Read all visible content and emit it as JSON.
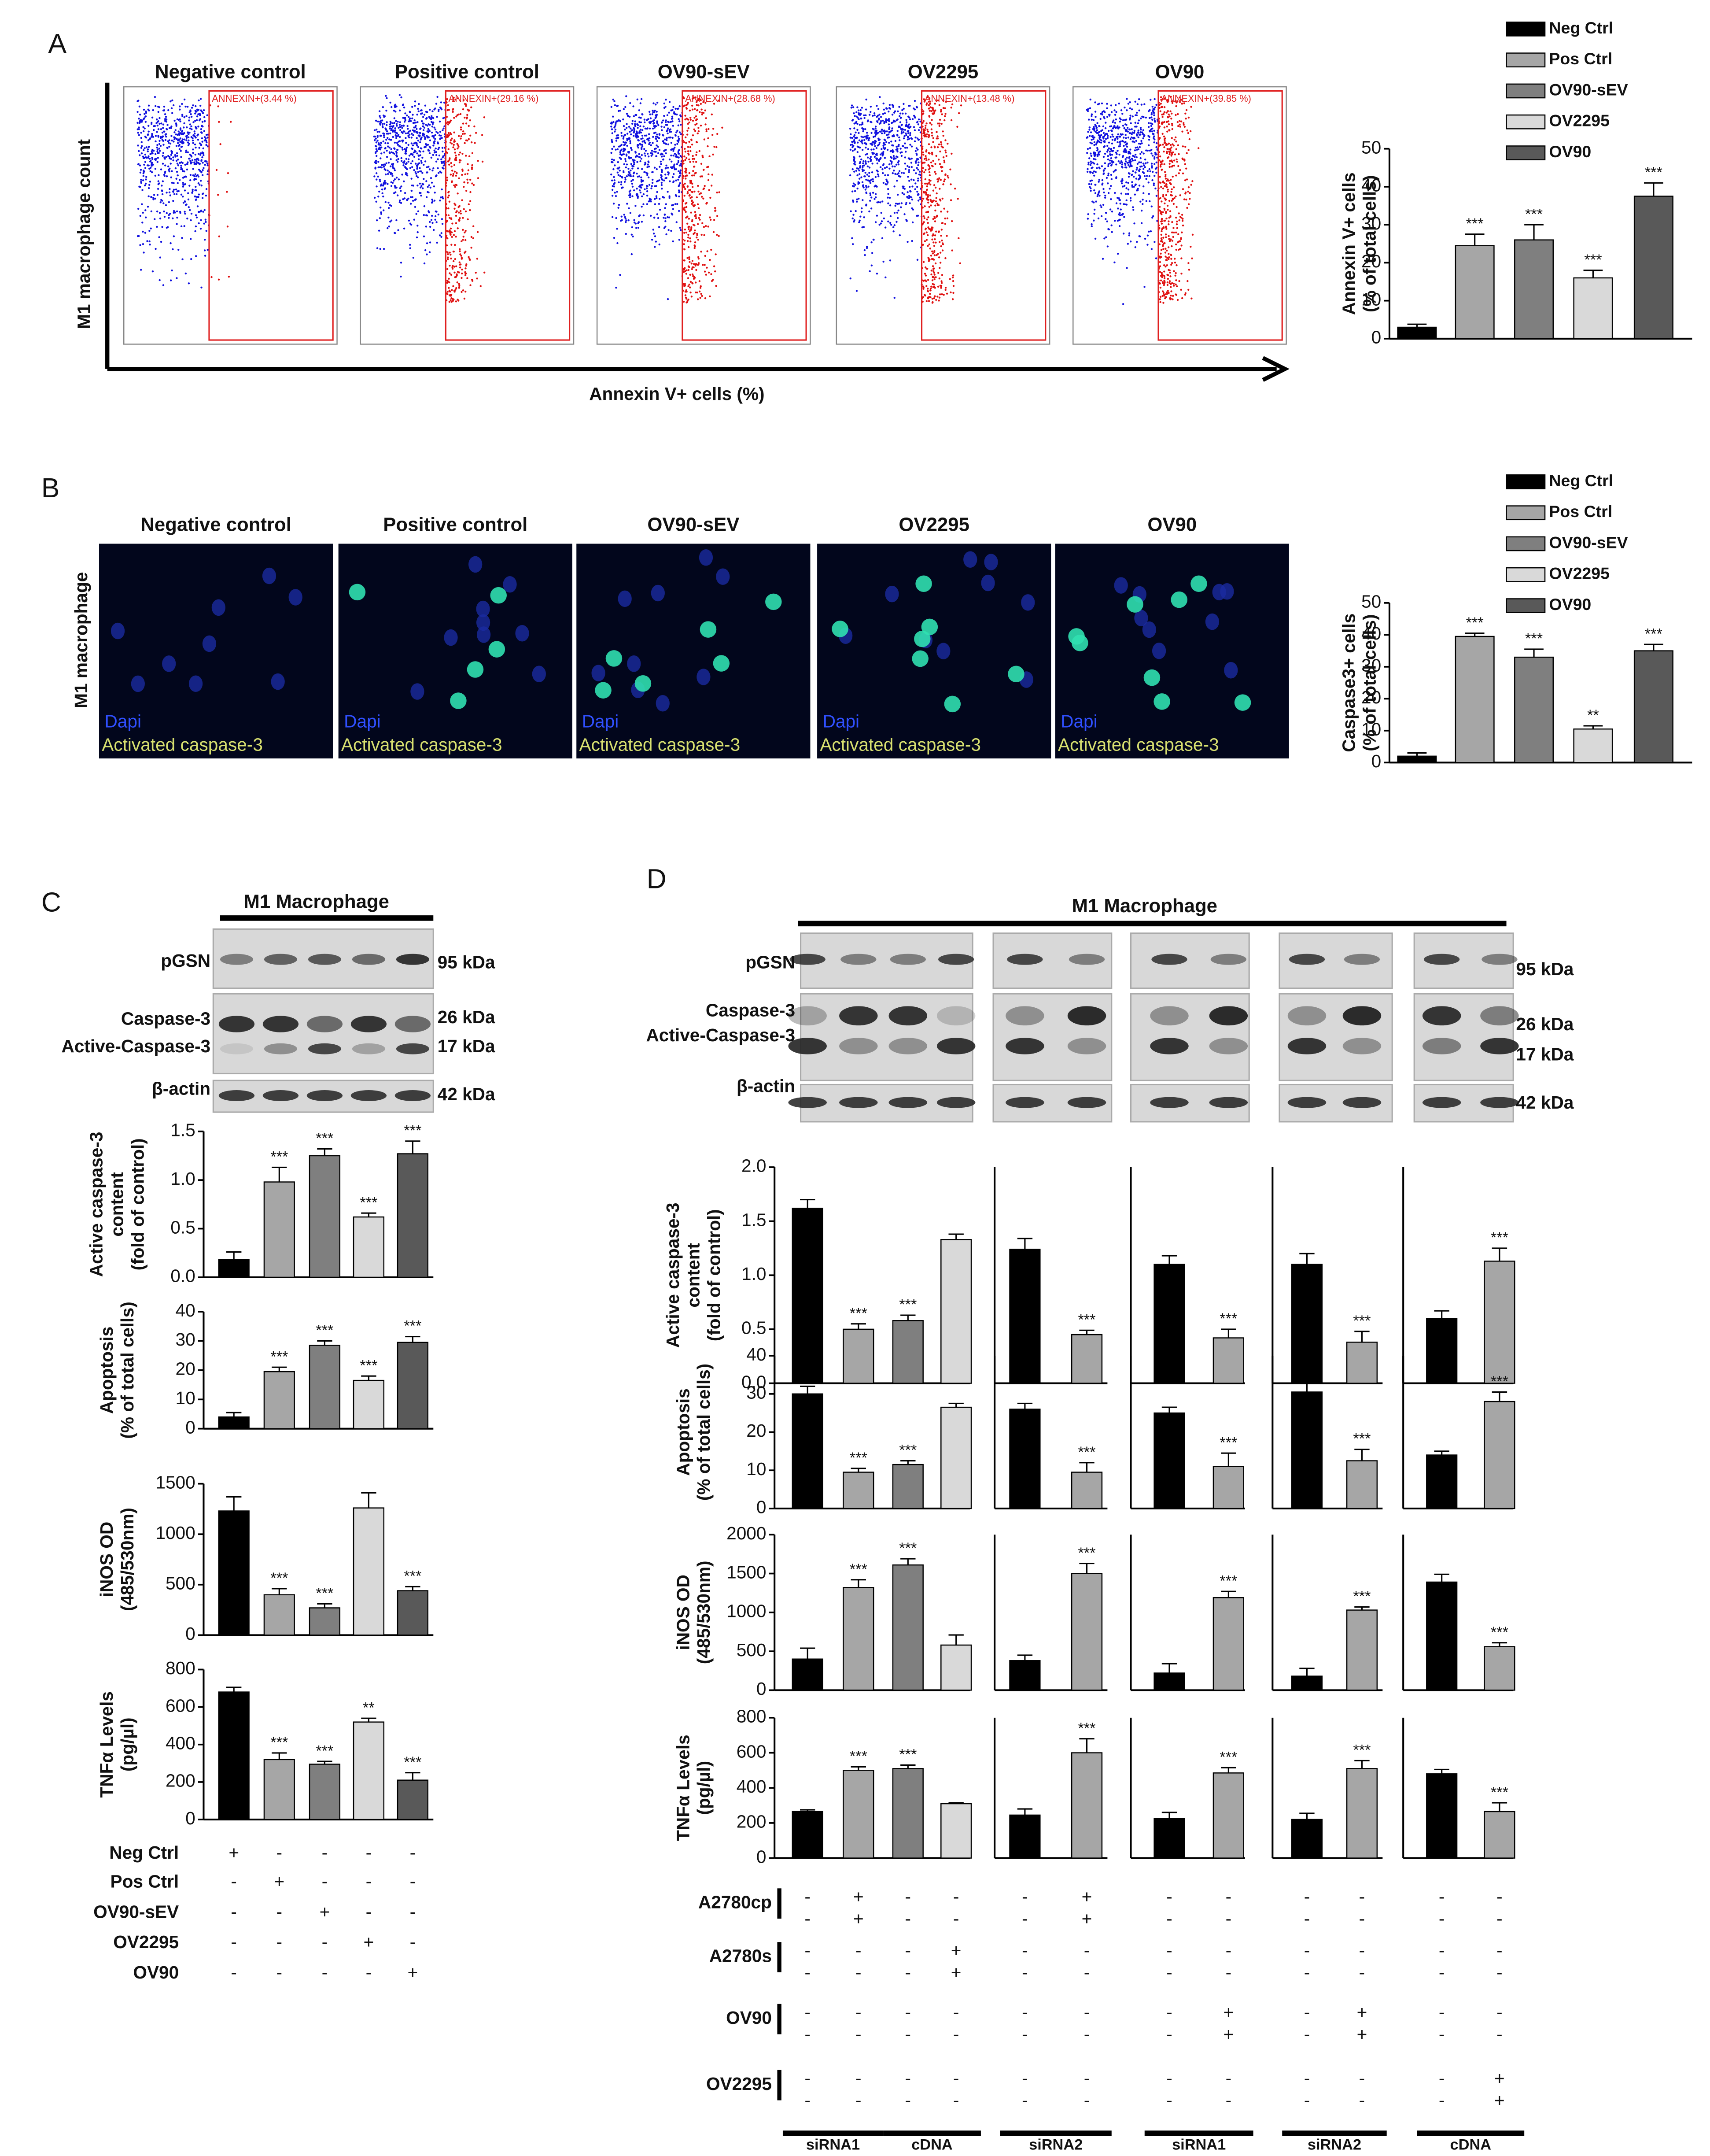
{
  "panel_a": {
    "label": "A",
    "flow": {
      "titles": [
        "Negative control",
        "Positive control",
        "OV90-sEV",
        "OV2295",
        "OV90"
      ],
      "gates": [
        "ANNEXIN+(3.44 %)",
        "ANNEXIN+(29.16 %)",
        "ANNEXIN+(28.68 %)",
        "ANNEXIN+(13.48 %)",
        "ANNEXIN+(39.85 %)"
      ],
      "ylabel": "M1 macrophage count",
      "xlabel": "Annexin V+ cells (%)"
    },
    "chart": {
      "type": "bar",
      "legend": [
        "Neg Ctrl",
        "Pos Ctrl",
        "OV90-sEV",
        "OV2295",
        "OV90"
      ],
      "colors": [
        "#000000",
        "#a6a6a6",
        "#7f7f7f",
        "#d9d9d9",
        "#595959"
      ],
      "ylabel": [
        "Annexin V+ cells",
        "(% of total cells)"
      ],
      "ylim": [
        0,
        50
      ],
      "yticks": [
        0,
        10,
        20,
        30,
        40,
        50
      ],
      "values": [
        3,
        24.5,
        26,
        16,
        37.5
      ],
      "errors": [
        0.8,
        3,
        4,
        2,
        3.5
      ],
      "significance": [
        null,
        "***",
        "***",
        "***",
        "***"
      ]
    }
  },
  "panel_b": {
    "label": "B",
    "images": {
      "titles": [
        "Negative control",
        "Positive control",
        "OV90-sEV",
        "OV2295",
        "OV90"
      ],
      "stain_labels": [
        "Dapi",
        "Activated caspase-3"
      ],
      "ylabel": "M1 macrophage"
    },
    "chart": {
      "type": "bar",
      "legend": [
        "Neg Ctrl",
        "Pos Ctrl",
        "OV90-sEV",
        "OV2295",
        "OV90"
      ],
      "colors": [
        "#000000",
        "#a6a6a6",
        "#7f7f7f",
        "#d9d9d9",
        "#595959"
      ],
      "ylabel": [
        "Caspase3+ cells",
        "(% of total cells)"
      ],
      "ylim": [
        0,
        50
      ],
      "yticks": [
        0,
        10,
        20,
        30,
        40,
        50
      ],
      "values": [
        2,
        39.5,
        33,
        10.5,
        35
      ],
      "errors": [
        1,
        1,
        2.5,
        1,
        2
      ],
      "significance": [
        null,
        "***",
        "***",
        "**",
        "***"
      ]
    }
  },
  "panel_c": {
    "label": "C",
    "blot": {
      "title": "M1 Macrophage",
      "rows": [
        "pGSN",
        "Caspase-3",
        "Active-Caspase-3",
        "β-actin"
      ],
      "sizes": [
        "95 kDa",
        "26 kDa",
        "17 kDa",
        "42 kDa"
      ]
    },
    "colors": [
      "#000000",
      "#a6a6a6",
      "#7f7f7f",
      "#d9d9d9",
      "#595959"
    ],
    "charts": [
      {
        "type": "bar",
        "ylabel": [
          "Active caspase-3",
          "content",
          "(fold of control)"
        ],
        "ylim": [
          0,
          1.5
        ],
        "yticks": [
          {
            "value": 0,
            "label": "0.0"
          },
          {
            "value": 0.5,
            "label": "0.5"
          },
          {
            "value": 1,
            "label": "1.0"
          },
          {
            "value": 1.5,
            "label": "1.5"
          }
        ],
        "values": [
          0.18,
          0.98,
          1.25,
          0.62,
          1.27
        ],
        "errors": [
          0.08,
          0.15,
          0.07,
          0.04,
          0.13
        ],
        "significance": [
          null,
          "***",
          "***",
          "***",
          "***"
        ]
      },
      {
        "type": "bar",
        "ylabel": [
          "Apoptosis",
          "(% of total cells)"
        ],
        "ylim": [
          0,
          40
        ],
        "yticks": [
          0,
          10,
          20,
          30,
          40
        ],
        "values": [
          4,
          19.5,
          28.5,
          16.5,
          29.5
        ],
        "errors": [
          1.5,
          1.5,
          1.5,
          1.5,
          2
        ],
        "significance": [
          null,
          "***",
          "***",
          "***",
          "***"
        ]
      },
      {
        "type": "bar",
        "ylabel": [
          "iNOS OD",
          "(485/530nm)"
        ],
        "ylim": [
          0,
          1500
        ],
        "yticks": [
          0,
          500,
          1000,
          1500
        ],
        "values": [
          1230,
          400,
          270,
          1260,
          440
        ],
        "errors": [
          140,
          60,
          40,
          150,
          40
        ],
        "significance": [
          null,
          "***",
          "***",
          null,
          "***"
        ]
      },
      {
        "type": "bar",
        "ylabel": [
          "TNFα Levels",
          "(pg/µl)"
        ],
        "ylim": [
          0,
          800
        ],
        "yticks": [
          0,
          200,
          400,
          600,
          800
        ],
        "values": [
          680,
          320,
          295,
          520,
          210
        ],
        "errors": [
          25,
          35,
          15,
          20,
          40
        ],
        "significance": [
          null,
          "***",
          "***",
          "**",
          "***"
        ]
      }
    ],
    "treatments": {
      "rows": [
        "Neg Ctrl",
        "Pos Ctrl",
        "OV90-sEV",
        "OV2295",
        "OV90"
      ],
      "signs": [
        [
          "+",
          "-",
          "-",
          "-",
          "-"
        ],
        [
          "-",
          "+",
          "-",
          "-",
          "-"
        ],
        [
          "-",
          "-",
          "+",
          "-",
          "-"
        ],
        [
          "-",
          "-",
          "-",
          "+",
          "-"
        ],
        [
          "-",
          "-",
          "-",
          "-",
          "+"
        ]
      ]
    }
  },
  "panel_d": {
    "label": "D",
    "blot": {
      "title": "M1 Macrophage",
      "rows": [
        "pGSN",
        "Caspase-3",
        "Active-Caspase-3",
        "β-actin"
      ],
      "sizes": [
        "95 kDa",
        "26 kDa",
        "17 kDa",
        "42 kDa"
      ]
    },
    "groups": [
      {
        "colors": [
          "#000000",
          "#a6a6a6",
          "#7f7f7f",
          "#d9d9d9"
        ],
        "labels": [
          "siRNA1",
          "cDNA"
        ]
      },
      {
        "colors": [
          "#000000",
          "#a6a6a6"
        ],
        "labels": [
          "siRNA2"
        ]
      },
      {
        "colors": [
          "#000000",
          "#a6a6a6"
        ],
        "labels": [
          "siRNA1"
        ]
      },
      {
        "colors": [
          "#000000",
          "#a6a6a6"
        ],
        "labels": [
          "siRNA2"
        ]
      },
      {
        "colors": [
          "#000000",
          "#a6a6a6"
        ],
        "labels": [
          "cDNA"
        ]
      }
    ],
    "metrics": [
      {
        "type": "bar",
        "ylabel": [
          "Active caspase-3",
          "content",
          "(fold of control)"
        ],
        "ylim": [
          0,
          2
        ],
        "yticks": [
          {
            "value": 0,
            "label": "0.0"
          },
          {
            "value": 0.5,
            "label": "0.5"
          },
          {
            "value": 1,
            "label": "1.0"
          },
          {
            "value": 1.5,
            "label": "1.5"
          },
          {
            "value": 2,
            "label": "2.0"
          }
        ],
        "data": [
          {
            "values": [
              1.62,
              0.5,
              0.58,
              1.33
            ],
            "errors": [
              0.08,
              0.05,
              0.05,
              0.05
            ],
            "significance": [
              null,
              "***",
              "***",
              null
            ]
          },
          {
            "values": [
              1.24,
              0.45
            ],
            "errors": [
              0.1,
              0.04
            ],
            "significance": [
              null,
              "***"
            ]
          },
          {
            "values": [
              1.1,
              0.42
            ],
            "errors": [
              0.08,
              0.08
            ],
            "significance": [
              null,
              "***"
            ]
          },
          {
            "values": [
              1.1,
              0.38
            ],
            "errors": [
              0.1,
              0.1
            ],
            "significance": [
              null,
              "***"
            ]
          },
          {
            "values": [
              0.6,
              1.13
            ],
            "errors": [
              0.07,
              0.12
            ],
            "significance": [
              null,
              "***"
            ]
          }
        ]
      },
      {
        "type": "bar",
        "ylabel": [
          "Apoptosis",
          "(% of total cells)"
        ],
        "ylim": [
          0,
          40
        ],
        "yticks": [
          0,
          10,
          20,
          30,
          40
        ],
        "data": [
          {
            "values": [
              30,
              9.5,
              11.5,
              26.5
            ],
            "errors": [
              2,
              1,
              1,
              1
            ],
            "significance": [
              null,
              "***",
              "***",
              null
            ]
          },
          {
            "values": [
              26,
              9.5
            ],
            "errors": [
              1.5,
              2.5
            ],
            "significance": [
              null,
              "***"
            ]
          },
          {
            "values": [
              25,
              11
            ],
            "errors": [
              1.5,
              3.5
            ],
            "significance": [
              null,
              "***"
            ]
          },
          {
            "values": [
              30.5,
              12.5
            ],
            "errors": [
              2.5,
              3
            ],
            "significance": [
              null,
              "***"
            ]
          },
          {
            "values": [
              14,
              28
            ],
            "errors": [
              1,
              2.5
            ],
            "significance": [
              null,
              "***"
            ]
          }
        ]
      },
      {
        "type": "bar",
        "ylabel": [
          "iNOS OD",
          "(485/530nm)"
        ],
        "ylim": [
          0,
          2000
        ],
        "yticks": [
          0,
          500,
          1000,
          1500,
          2000
        ],
        "data": [
          {
            "values": [
              400,
              1320,
              1610,
              580
            ],
            "errors": [
              140,
              100,
              80,
              130
            ],
            "significance": [
              null,
              "***",
              "***",
              null
            ]
          },
          {
            "values": [
              380,
              1500
            ],
            "errors": [
              70,
              130
            ],
            "significance": [
              null,
              "***"
            ]
          },
          {
            "values": [
              220,
              1190
            ],
            "errors": [
              120,
              80
            ],
            "significance": [
              null,
              "***"
            ]
          },
          {
            "values": [
              180,
              1030
            ],
            "errors": [
              100,
              40
            ],
            "significance": [
              null,
              "***"
            ]
          },
          {
            "values": [
              1390,
              560
            ],
            "errors": [
              100,
              50
            ],
            "significance": [
              null,
              "***"
            ]
          }
        ]
      },
      {
        "type": "bar",
        "ylabel": [
          "TNFα Levels",
          "(pg/µl)"
        ],
        "ylim": [
          0,
          800
        ],
        "yticks": [
          0,
          200,
          400,
          600,
          800
        ],
        "data": [
          {
            "values": [
              265,
              500,
              510,
              310
            ],
            "errors": [
              10,
              20,
              20,
              5
            ],
            "significance": [
              null,
              "***",
              "***",
              null
            ]
          },
          {
            "values": [
              245,
              600
            ],
            "errors": [
              35,
              80
            ],
            "significance": [
              null,
              "***"
            ]
          },
          {
            "values": [
              225,
              485
            ],
            "errors": [
              35,
              30
            ],
            "significance": [
              null,
              "***"
            ]
          },
          {
            "values": [
              220,
              510
            ],
            "errors": [
              35,
              45
            ],
            "significance": [
              null,
              "***"
            ]
          },
          {
            "values": [
              480,
              265
            ],
            "errors": [
              25,
              50
            ],
            "significance": [
              null,
              "***"
            ]
          }
        ]
      }
    ],
    "treatments": {
      "rows": [
        "A2780cp",
        "A2780s",
        "OV90",
        "OV2295"
      ],
      "signs": [
        [
          [
            "-",
            "+",
            "-",
            "-"
          ],
          [
            "-",
            "+"
          ],
          [
            "-",
            "-"
          ],
          [
            "-",
            "-"
          ],
          [
            "-",
            "-"
          ]
        ],
        [
          [
            "-",
            "-",
            "-",
            "+"
          ],
          [
            "-",
            "-"
          ],
          [
            "-",
            "-"
          ],
          [
            "-",
            "-"
          ],
          [
            "-",
            "-"
          ]
        ],
        [
          [
            "-",
            "-",
            "-",
            "-"
          ],
          [
            "-",
            "-"
          ],
          [
            "-",
            "+"
          ],
          [
            "-",
            "+"
          ],
          [
            "-",
            "-"
          ]
        ],
        [
          [
            "-",
            "-",
            "-",
            "-"
          ],
          [
            "-",
            "-"
          ],
          [
            "-",
            "-"
          ],
          [
            "-",
            "-"
          ],
          [
            "-",
            "+"
          ]
        ]
      ]
    }
  }
}
